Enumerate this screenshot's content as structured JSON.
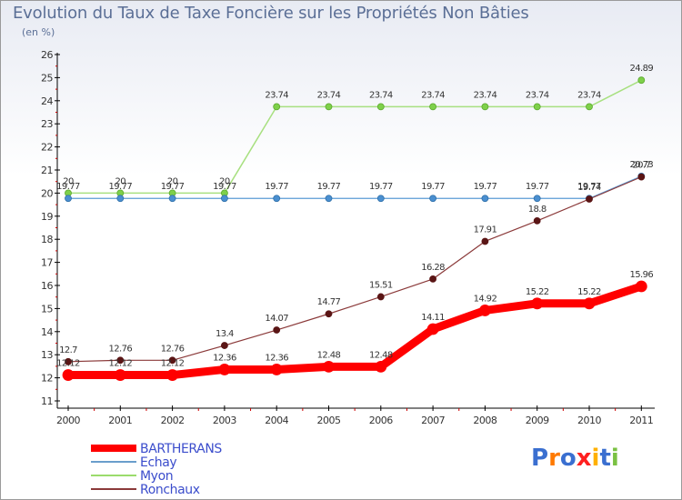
{
  "chart_data": {
    "type": "line",
    "title": "Evolution du Taux de Taxe Foncière sur les Propriétés Non Bâties",
    "ylabel": "(en %)",
    "xlabel": "",
    "categories": [
      "2000",
      "2001",
      "2002",
      "2003",
      "2004",
      "2005",
      "2006",
      "2007",
      "2008",
      "2009",
      "2010",
      "2011"
    ],
    "ylim": [
      11,
      26
    ],
    "yticks": [
      "11",
      "12",
      "13",
      "14",
      "15",
      "16",
      "17",
      "18",
      "19",
      "20",
      "21",
      "22",
      "23",
      "24",
      "25",
      "26"
    ],
    "grid": false,
    "legend_position": "bottom-left",
    "series": [
      {
        "name": "BARTHERANS",
        "color": "#ff0000",
        "values": [
          12.12,
          12.12,
          12.12,
          12.36,
          12.36,
          12.48,
          12.48,
          14.11,
          14.92,
          15.22,
          15.22,
          15.96
        ],
        "labels": [
          "12.12",
          "12.12",
          "12.12",
          "12.36",
          "12.36",
          "12.48",
          "12.48",
          "14.11",
          "14.92",
          "15.22",
          "15.22",
          "15.96"
        ]
      },
      {
        "name": "Echay",
        "color": "#5b9bd5",
        "values": [
          19.77,
          19.77,
          19.77,
          19.77,
          19.77,
          19.77,
          19.77,
          19.77,
          19.77,
          19.77,
          19.77,
          20.73
        ],
        "labels": [
          "19.77",
          "19.77",
          "19.77",
          "19.77",
          "19.77",
          "19.77",
          "19.77",
          "19.77",
          "19.77",
          "19.77",
          "19.77",
          "20.73"
        ]
      },
      {
        "name": "Myon",
        "color": "#9bdc6c",
        "values": [
          20,
          20,
          20,
          20,
          23.74,
          23.74,
          23.74,
          23.74,
          23.74,
          23.74,
          23.74,
          24.89
        ],
        "labels": [
          "20",
          "20",
          "20",
          "20",
          "23.74",
          "23.74",
          "23.74",
          "23.74",
          "23.74",
          "23.74",
          "23.74",
          "24.89"
        ]
      },
      {
        "name": "Ronchaux",
        "color": "#7b2b2b",
        "values": [
          12.7,
          12.76,
          12.76,
          13.4,
          14.07,
          14.77,
          15.51,
          16.28,
          17.91,
          18.8,
          19.74,
          20.7
        ],
        "labels": [
          "12.7",
          "12.76",
          "12.76",
          "13.4",
          "14.07",
          "14.77",
          "15.51",
          "16.28",
          "17.91",
          "18.8",
          "19.74",
          "20.7"
        ]
      }
    ]
  },
  "branding": {
    "logo_text": "Proxiti",
    "letters": [
      "P",
      "r",
      "o",
      "x",
      "i",
      "t",
      "i"
    ],
    "letter_colors": [
      "#3a6fd0",
      "#ff7a00",
      "#3a6fd0",
      "#ff2020",
      "#ffb000",
      "#3a6fd0",
      "#7ac143"
    ]
  }
}
